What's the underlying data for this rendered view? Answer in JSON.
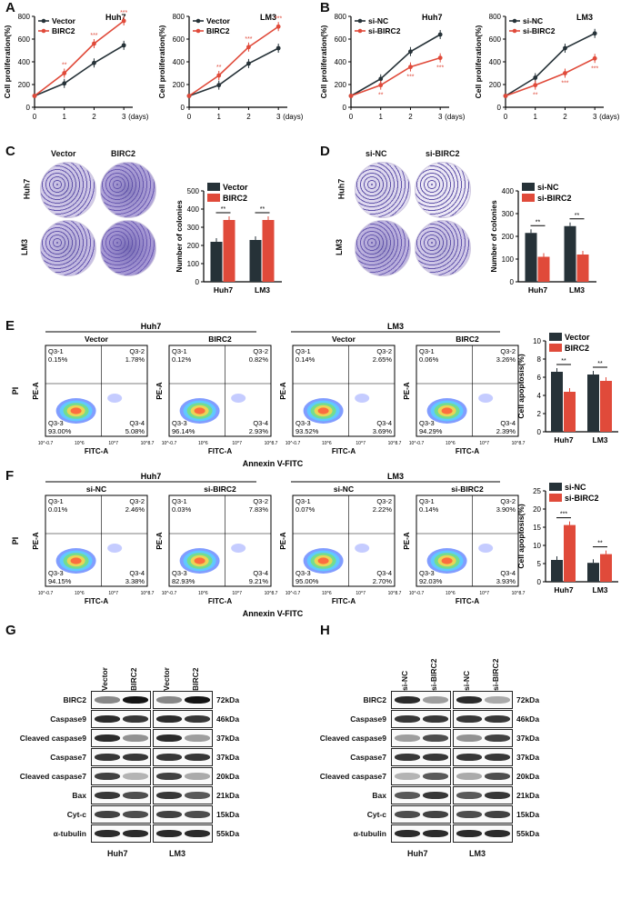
{
  "panels": {
    "A": "A",
    "B": "B",
    "C": "C",
    "D": "D",
    "E": "E",
    "F": "F",
    "G": "G",
    "H": "H"
  },
  "proliferation": {
    "ylabel": "Cell proliferation(%)",
    "xticks": [
      "0",
      "1",
      "2",
      "3"
    ],
    "xunit": "(days)",
    "yticks": [
      "0",
      "200",
      "400",
      "600",
      "800"
    ],
    "charts": [
      {
        "title": "Huh7",
        "legend": [
          "Vector",
          "BIRC2"
        ],
        "series": [
          {
            "name": "Vector",
            "values": [
              100,
              210,
              390,
              545
            ]
          },
          {
            "name": "BIRC2",
            "values": [
              100,
              300,
              560,
              760
            ]
          }
        ],
        "sig": [
          "**",
          "***",
          "***"
        ]
      },
      {
        "title": "LM3",
        "legend": [
          "Vector",
          "BIRC2"
        ],
        "series": [
          {
            "name": "Vector",
            "values": [
              100,
              195,
              385,
              520
            ]
          },
          {
            "name": "BIRC2",
            "values": [
              100,
              280,
              530,
              710
            ]
          }
        ],
        "sig": [
          "**",
          "***",
          "***"
        ]
      },
      {
        "title": "Huh7",
        "legend": [
          "si-NC",
          "si-BIRC2"
        ],
        "series": [
          {
            "name": "si-NC",
            "values": [
              100,
              250,
              490,
              640
            ]
          },
          {
            "name": "si-BIRC2",
            "values": [
              100,
              195,
              355,
              435
            ]
          }
        ],
        "sig": [
          "**",
          "***",
          "***"
        ]
      },
      {
        "title": "LM3",
        "legend": [
          "si-NC",
          "si-BIRC2"
        ],
        "series": [
          {
            "name": "si-NC",
            "values": [
              100,
              260,
              520,
              650
            ]
          },
          {
            "name": "si-BIRC2",
            "values": [
              100,
              195,
              300,
              430
            ]
          }
        ],
        "sig": [
          "**",
          "***",
          "***"
        ]
      }
    ]
  },
  "colony": {
    "C": {
      "cols": [
        "Vector",
        "BIRC2"
      ],
      "rows": [
        "Huh7",
        "LM3"
      ],
      "ylabel": "Number of colonies",
      "yticks": [
        "0",
        "100",
        "200",
        "300",
        "400",
        "500"
      ],
      "legend": [
        "Vector",
        "BIRC2"
      ],
      "categories": [
        "Huh7",
        "LM3"
      ],
      "series": [
        {
          "name": "Vector",
          "values": [
            220,
            230
          ]
        },
        {
          "name": "BIRC2",
          "values": [
            340,
            340
          ]
        }
      ],
      "sig": [
        "**",
        "**"
      ]
    },
    "D": {
      "cols": [
        "si-NC",
        "si-BIRC2"
      ],
      "rows": [
        "Huh7",
        "LM3"
      ],
      "ylabel": "Number of colonies",
      "yticks": [
        "0",
        "100",
        "200",
        "300",
        "400"
      ],
      "legend": [
        "si-NC",
        "si-BIRC2"
      ],
      "categories": [
        "Huh7",
        "LM3"
      ],
      "series": [
        {
          "name": "si-NC",
          "values": [
            215,
            245
          ]
        },
        {
          "name": "si-BIRC2",
          "values": [
            110,
            120
          ]
        }
      ],
      "sig": [
        "**",
        "**"
      ]
    }
  },
  "flow": {
    "axis_x": "FITC-A",
    "axis_y": "PE-A",
    "pi": "PI",
    "xlabel": "Annexin V-FITC",
    "E": {
      "groups": [
        "Huh7",
        "LM3"
      ],
      "plots": [
        {
          "title": "Vector",
          "q1": "0.15%",
          "q2": "1.78%",
          "q3": "93.00%",
          "q4": "5.08%"
        },
        {
          "title": "BIRC2",
          "q1": "0.12%",
          "q2": "0.82%",
          "q3": "96.14%",
          "q4": "2.93%"
        },
        {
          "title": "Vector",
          "q1": "0.14%",
          "q2": "2.65%",
          "q3": "93.52%",
          "q4": "3.69%"
        },
        {
          "title": "BIRC2",
          "q1": "0.06%",
          "q2": "3.26%",
          "q3": "94.29%",
          "q4": "2.39%"
        }
      ],
      "chart": {
        "ylabel": "Cell apoptosis(%)",
        "yticks": [
          "0",
          "2",
          "4",
          "6",
          "8",
          "10"
        ],
        "legend": [
          "Vector",
          "BIRC2"
        ],
        "categories": [
          "Huh7",
          "LM3"
        ],
        "series": [
          {
            "name": "Vector",
            "values": [
              6.6,
              6.3
            ]
          },
          {
            "name": "BIRC2",
            "values": [
              4.4,
              5.6
            ]
          }
        ],
        "ymax": 10,
        "sig": [
          "**",
          "**"
        ]
      }
    },
    "F": {
      "groups": [
        "Huh7",
        "LM3"
      ],
      "plots": [
        {
          "title": "si-NC",
          "q1": "0.01%",
          "q2": "2.46%",
          "q3": "94.15%",
          "q4": "3.38%"
        },
        {
          "title": "si-BIRC2",
          "q1": "0.03%",
          "q2": "7.83%",
          "q3": "82.93%",
          "q4": "9.21%"
        },
        {
          "title": "si-NC",
          "q1": "0.07%",
          "q2": "2.22%",
          "q3": "95.00%",
          "q4": "2.70%"
        },
        {
          "title": "si-BIRC2",
          "q1": "0.14%",
          "q2": "3.90%",
          "q3": "92.03%",
          "q4": "3.93%"
        }
      ],
      "chart": {
        "ylabel": "Cell apoptosis(%)",
        "yticks": [
          "0",
          "5",
          "10",
          "15",
          "20",
          "25"
        ],
        "legend": [
          "si-NC",
          "si-BIRC2"
        ],
        "categories": [
          "Huh7",
          "LM3"
        ],
        "series": [
          {
            "name": "si-NC",
            "values": [
              6.0,
              5.2
            ]
          },
          {
            "name": "si-BIRC2",
            "values": [
              15.6,
              7.6
            ]
          }
        ],
        "ymax": 25,
        "sig": [
          "***",
          "**"
        ]
      }
    },
    "ticks_x": [
      "10^-0.7",
      "10^6",
      "10^7",
      "10^8.7"
    ],
    "quads": [
      "Q3-1",
      "Q3-2",
      "Q3-3",
      "Q3-4"
    ]
  },
  "western": {
    "G": {
      "lanes": [
        "Vector",
        "BIRC2",
        "Vector",
        "BIRC2"
      ],
      "groups": [
        "Huh7",
        "LM3"
      ]
    },
    "H": {
      "lanes": [
        "si-NC",
        "si-BIRC2",
        "si-NC",
        "si-BIRC2"
      ],
      "groups": [
        "Huh7",
        "LM3"
      ]
    },
    "rows": [
      {
        "label": "BIRC2",
        "kda": "72kDa"
      },
      {
        "label": "Caspase9",
        "kda": "46kDa"
      },
      {
        "label": "Cleaved caspase9",
        "kda": "37kDa"
      },
      {
        "label": "Caspase7",
        "kda": "37kDa"
      },
      {
        "label": "Cleaved caspase7",
        "kda": "20kDa"
      },
      {
        "label": "Bax",
        "kda": "21kDa"
      },
      {
        "label": "Cyt-c",
        "kda": "15kDa"
      },
      {
        "label": "α-tubulin",
        "kda": "55kDa"
      }
    ],
    "G_intensity": [
      [
        0.5,
        1,
        0.5,
        1
      ],
      [
        0.9,
        0.85,
        0.9,
        0.85
      ],
      [
        0.9,
        0.45,
        0.9,
        0.4
      ],
      [
        0.85,
        0.85,
        0.85,
        0.85
      ],
      [
        0.8,
        0.3,
        0.8,
        0.35
      ],
      [
        0.85,
        0.75,
        0.85,
        0.7
      ],
      [
        0.8,
        0.75,
        0.8,
        0.75
      ],
      [
        0.9,
        0.9,
        0.9,
        0.9
      ]
    ],
    "H_intensity": [
      [
        0.9,
        0.4,
        0.9,
        0.35
      ],
      [
        0.85,
        0.85,
        0.85,
        0.85
      ],
      [
        0.4,
        0.75,
        0.45,
        0.8
      ],
      [
        0.85,
        0.85,
        0.85,
        0.85
      ],
      [
        0.3,
        0.7,
        0.35,
        0.75
      ],
      [
        0.7,
        0.85,
        0.7,
        0.85
      ],
      [
        0.75,
        0.8,
        0.75,
        0.8
      ],
      [
        0.9,
        0.9,
        0.9,
        0.9
      ]
    ]
  },
  "colors": {
    "dark": "#263238",
    "red": "#e04a3a",
    "plate_bg": "#f2eff7",
    "plate_dot": "#5c4fa6"
  }
}
